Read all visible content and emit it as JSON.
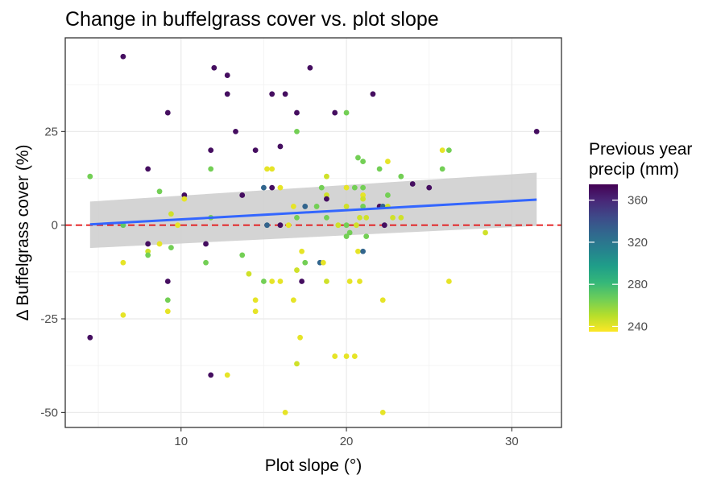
{
  "chart_data": {
    "type": "scatter",
    "title": "Change in buffelgrass cover vs. plot slope",
    "xlabel": "Plot slope (°)",
    "ylabel": "Δ Buffelgrass cover (%)",
    "xlim": [
      3,
      33
    ],
    "ylim": [
      -54,
      50
    ],
    "x_ticks": [
      10,
      20,
      30
    ],
    "y_ticks": [
      -50,
      -25,
      0,
      25
    ],
    "grid": true,
    "reference_line": {
      "y": 0,
      "color": "#e31a1c",
      "style": "dashed"
    },
    "trend": {
      "x": [
        4.5,
        31.5
      ],
      "y": [
        0.2,
        6.8
      ],
      "ci_lower": [
        -6.1,
        -0.2
      ],
      "ci_upper": [
        6.3,
        14.0
      ],
      "color": "#3366ff",
      "ci_color": "#cccccc"
    },
    "legend": {
      "title": [
        "Previous year",
        "precip (mm)"
      ],
      "placement": "right",
      "ticks": [
        240,
        280,
        320,
        360
      ],
      "range": [
        235,
        375
      ],
      "colormap": [
        "#fde725",
        "#b5de2b",
        "#6ece58",
        "#35b779",
        "#1f9e89",
        "#26828e",
        "#31688e",
        "#3e4a89",
        "#482878",
        "#440154"
      ]
    },
    "points": [
      {
        "x": 4.5,
        "y": 13,
        "c": 265
      },
      {
        "x": 4.5,
        "y": -30,
        "c": 370
      },
      {
        "x": 6.5,
        "y": 45,
        "c": 370
      },
      {
        "x": 6.5,
        "y": 0,
        "c": 270
      },
      {
        "x": 6.5,
        "y": -10,
        "c": 240
      },
      {
        "x": 6.5,
        "y": -24,
        "c": 240
      },
      {
        "x": 8,
        "y": 15,
        "c": 370
      },
      {
        "x": 8,
        "y": -5,
        "c": 370
      },
      {
        "x": 8,
        "y": -7,
        "c": 245
      },
      {
        "x": 8,
        "y": -8,
        "c": 265
      },
      {
        "x": 8.7,
        "y": 9,
        "c": 265
      },
      {
        "x": 8.7,
        "y": -5,
        "c": 240
      },
      {
        "x": 9.2,
        "y": 30,
        "c": 370
      },
      {
        "x": 9.2,
        "y": -15,
        "c": 370
      },
      {
        "x": 9.2,
        "y": -20,
        "c": 265
      },
      {
        "x": 9.2,
        "y": -23,
        "c": 240
      },
      {
        "x": 9.4,
        "y": 3,
        "c": 245
      },
      {
        "x": 9.4,
        "y": -6,
        "c": 265
      },
      {
        "x": 10.2,
        "y": 8,
        "c": 370
      },
      {
        "x": 10.2,
        "y": 7,
        "c": 240
      },
      {
        "x": 9.8,
        "y": 0,
        "c": 240
      },
      {
        "x": 11.5,
        "y": -5,
        "c": 370
      },
      {
        "x": 11.5,
        "y": -10,
        "c": 265
      },
      {
        "x": 11.8,
        "y": 20,
        "c": 370
      },
      {
        "x": 11.8,
        "y": 15,
        "c": 265
      },
      {
        "x": 11.8,
        "y": 2,
        "c": 265
      },
      {
        "x": 11.8,
        "y": -40,
        "c": 370
      },
      {
        "x": 12,
        "y": 42,
        "c": 370
      },
      {
        "x": 12.8,
        "y": 40,
        "c": 370
      },
      {
        "x": 12.8,
        "y": 35,
        "c": 370
      },
      {
        "x": 12.8,
        "y": -40,
        "c": 240
      },
      {
        "x": 13.3,
        "y": 25,
        "c": 370
      },
      {
        "x": 13.7,
        "y": 8,
        "c": 370
      },
      {
        "x": 13.7,
        "y": -8,
        "c": 265
      },
      {
        "x": 14.1,
        "y": -13,
        "c": 245
      },
      {
        "x": 14.5,
        "y": 20,
        "c": 370
      },
      {
        "x": 14.5,
        "y": -20,
        "c": 240
      },
      {
        "x": 14.5,
        "y": -23,
        "c": 240
      },
      {
        "x": 15,
        "y": 10,
        "c": 330
      },
      {
        "x": 15,
        "y": -15,
        "c": 265
      },
      {
        "x": 15.2,
        "y": 15,
        "c": 240
      },
      {
        "x": 15.2,
        "y": 0,
        "c": 330
      },
      {
        "x": 15.5,
        "y": 35,
        "c": 370
      },
      {
        "x": 15.5,
        "y": 15,
        "c": 240
      },
      {
        "x": 15.5,
        "y": 10,
        "c": 370
      },
      {
        "x": 15.5,
        "y": -15,
        "c": 240
      },
      {
        "x": 16,
        "y": 21,
        "c": 370
      },
      {
        "x": 16,
        "y": 10,
        "c": 240
      },
      {
        "x": 16,
        "y": 0,
        "c": 370
      },
      {
        "x": 16,
        "y": -15,
        "c": 240
      },
      {
        "x": 16.3,
        "y": 35,
        "c": 370
      },
      {
        "x": 16.3,
        "y": -50,
        "c": 240
      },
      {
        "x": 16.5,
        "y": 0,
        "c": 240
      },
      {
        "x": 16.8,
        "y": 5,
        "c": 240
      },
      {
        "x": 16.8,
        "y": -20,
        "c": 240
      },
      {
        "x": 17,
        "y": 30,
        "c": 370
      },
      {
        "x": 17,
        "y": 25,
        "c": 265
      },
      {
        "x": 17,
        "y": 2,
        "c": 265
      },
      {
        "x": 17,
        "y": -12,
        "c": 245
      },
      {
        "x": 17,
        "y": -37,
        "c": 245
      },
      {
        "x": 17.2,
        "y": -30,
        "c": 240
      },
      {
        "x": 17.3,
        "y": -7,
        "c": 240
      },
      {
        "x": 17.3,
        "y": -15,
        "c": 370
      },
      {
        "x": 17.5,
        "y": 5,
        "c": 330
      },
      {
        "x": 17.5,
        "y": -10,
        "c": 265
      },
      {
        "x": 17.8,
        "y": 42,
        "c": 370
      },
      {
        "x": 18.2,
        "y": 5,
        "c": 265
      },
      {
        "x": 18.4,
        "y": -10,
        "c": 330
      },
      {
        "x": 18.5,
        "y": 10,
        "c": 265
      },
      {
        "x": 18.6,
        "y": -10,
        "c": 240
      },
      {
        "x": 18.8,
        "y": 13,
        "c": 245
      },
      {
        "x": 18.8,
        "y": 8,
        "c": 245
      },
      {
        "x": 18.8,
        "y": 7,
        "c": 370
      },
      {
        "x": 18.8,
        "y": 2,
        "c": 265
      },
      {
        "x": 18.8,
        "y": -15,
        "c": 245
      },
      {
        "x": 19.3,
        "y": 30,
        "c": 370
      },
      {
        "x": 19.3,
        "y": -35,
        "c": 240
      },
      {
        "x": 19.5,
        "y": 0,
        "c": 245
      },
      {
        "x": 20,
        "y": 30,
        "c": 265
      },
      {
        "x": 20,
        "y": 10,
        "c": 240
      },
      {
        "x": 20,
        "y": 5,
        "c": 245
      },
      {
        "x": 20,
        "y": 0,
        "c": 265
      },
      {
        "x": 20,
        "y": -3,
        "c": 265
      },
      {
        "x": 20,
        "y": -35,
        "c": 240
      },
      {
        "x": 20.2,
        "y": -2,
        "c": 265
      },
      {
        "x": 20.2,
        "y": -15,
        "c": 240
      },
      {
        "x": 20.5,
        "y": 10,
        "c": 265
      },
      {
        "x": 20.5,
        "y": -35,
        "c": 240
      },
      {
        "x": 20.6,
        "y": 0,
        "c": 245
      },
      {
        "x": 20.7,
        "y": 18,
        "c": 265
      },
      {
        "x": 20.7,
        "y": -7,
        "c": 240
      },
      {
        "x": 20.8,
        "y": 2,
        "c": 245
      },
      {
        "x": 20.8,
        "y": -15,
        "c": 240
      },
      {
        "x": 21,
        "y": 17,
        "c": 265
      },
      {
        "x": 21,
        "y": 10,
        "c": 265
      },
      {
        "x": 21,
        "y": 8,
        "c": 240
      },
      {
        "x": 21,
        "y": 7,
        "c": 245
      },
      {
        "x": 21,
        "y": 5,
        "c": 265
      },
      {
        "x": 21,
        "y": -7,
        "c": 330
      },
      {
        "x": 21.2,
        "y": 2,
        "c": 245
      },
      {
        "x": 21.2,
        "y": -3,
        "c": 265
      },
      {
        "x": 21.6,
        "y": 35,
        "c": 370
      },
      {
        "x": 22,
        "y": 15,
        "c": 265
      },
      {
        "x": 22,
        "y": 5,
        "c": 370
      },
      {
        "x": 22.2,
        "y": 5,
        "c": 330
      },
      {
        "x": 22.2,
        "y": -20,
        "c": 240
      },
      {
        "x": 22.2,
        "y": -50,
        "c": 240
      },
      {
        "x": 22.3,
        "y": 0,
        "c": 370
      },
      {
        "x": 22.5,
        "y": 17,
        "c": 240
      },
      {
        "x": 22.5,
        "y": 8,
        "c": 265
      },
      {
        "x": 22.5,
        "y": 5,
        "c": 245
      },
      {
        "x": 22.8,
        "y": 2,
        "c": 245
      },
      {
        "x": 23.3,
        "y": 13,
        "c": 265
      },
      {
        "x": 23.3,
        "y": 2,
        "c": 245
      },
      {
        "x": 24,
        "y": 11,
        "c": 370
      },
      {
        "x": 25,
        "y": 10,
        "c": 370
      },
      {
        "x": 25.8,
        "y": 20,
        "c": 240
      },
      {
        "x": 25.8,
        "y": 15,
        "c": 265
      },
      {
        "x": 26.2,
        "y": 20,
        "c": 265
      },
      {
        "x": 26.2,
        "y": -15,
        "c": 240
      },
      {
        "x": 28.4,
        "y": -2,
        "c": 245
      },
      {
        "x": 31.5,
        "y": 25,
        "c": 370
      }
    ]
  }
}
